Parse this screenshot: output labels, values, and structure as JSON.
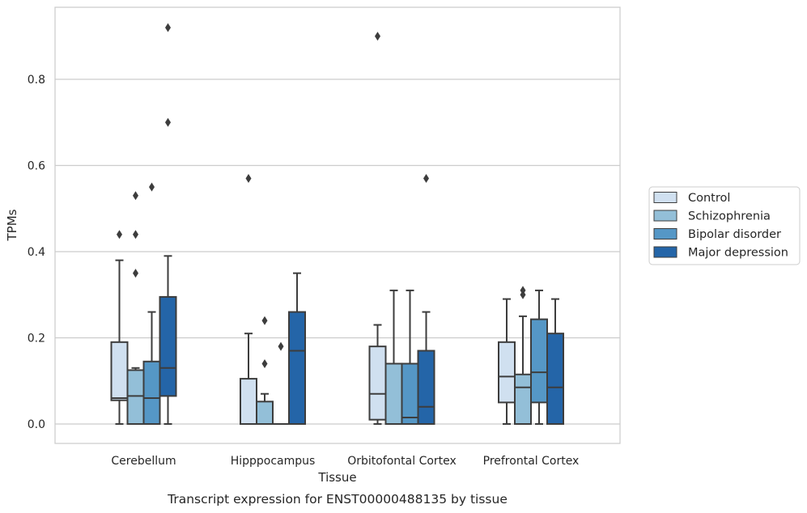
{
  "chart_data": {
    "type": "box",
    "xlabel": "Tissue",
    "ylabel": "TPMs",
    "caption": "Transcript expression for ENST00000488135 by tissue",
    "ylim": [
      -0.045,
      0.965
    ],
    "yticks": [
      0.0,
      0.2,
      0.4,
      0.6,
      0.8
    ],
    "ytick_labels": [
      "0.0",
      "0.2",
      "0.4",
      "0.6",
      "0.8"
    ],
    "grid": "horizontal",
    "legend_position": "right",
    "categories": [
      "Cerebellum",
      "Hipppocampus",
      "Orbitofontal Cortex",
      "Prefrontal Cortex"
    ],
    "series": [
      {
        "name": "Control",
        "color": "#d0e0f0",
        "boxes": [
          {
            "min": 0.0,
            "q1": 0.055,
            "median": 0.06,
            "q3": 0.19,
            "max": 0.38,
            "outliers": [
              0.44
            ]
          },
          {
            "min": 0.0,
            "q1": 0.0,
            "median": 0.0,
            "q3": 0.105,
            "max": 0.21,
            "outliers": [
              0.57
            ]
          },
          {
            "min": 0.0,
            "q1": 0.01,
            "median": 0.07,
            "q3": 0.18,
            "max": 0.23,
            "outliers": [
              0.9
            ]
          },
          {
            "min": 0.0,
            "q1": 0.05,
            "median": 0.11,
            "q3": 0.19,
            "max": 0.29,
            "outliers": []
          }
        ]
      },
      {
        "name": "Schizophrenia",
        "color": "#93bfd8",
        "boxes": [
          {
            "min": 0.0,
            "q1": 0.0,
            "median": 0.065,
            "q3": 0.125,
            "max": 0.13,
            "outliers": [
              0.35,
              0.44,
              0.53
            ]
          },
          {
            "min": 0.0,
            "q1": 0.0,
            "median": 0.0,
            "q3": 0.052,
            "max": 0.07,
            "outliers": [
              0.14,
              0.24
            ]
          },
          {
            "min": 0.0,
            "q1": 0.0,
            "median": 0.0,
            "q3": 0.14,
            "max": 0.31,
            "outliers": []
          },
          {
            "min": 0.0,
            "q1": 0.0,
            "median": 0.085,
            "q3": 0.115,
            "max": 0.25,
            "outliers": [
              0.3,
              0.31
            ]
          }
        ]
      },
      {
        "name": "Bipolar disorder",
        "color": "#5597c6",
        "boxes": [
          {
            "min": 0.0,
            "q1": 0.0,
            "median": 0.06,
            "q3": 0.145,
            "max": 0.26,
            "outliers": [
              0.55
            ]
          },
          {
            "min": 0.0,
            "q1": 0.0,
            "median": 0.0,
            "q3": 0.0,
            "max": 0.0,
            "outliers": [
              0.18
            ]
          },
          {
            "min": 0.0,
            "q1": 0.0,
            "median": 0.015,
            "q3": 0.14,
            "max": 0.31,
            "outliers": []
          },
          {
            "min": 0.0,
            "q1": 0.05,
            "median": 0.12,
            "q3": 0.243,
            "max": 0.31,
            "outliers": []
          }
        ]
      },
      {
        "name": "Major depression",
        "color": "#2465a8",
        "boxes": [
          {
            "min": 0.0,
            "q1": 0.065,
            "median": 0.13,
            "q3": 0.295,
            "max": 0.39,
            "outliers": [
              0.7,
              0.92
            ]
          },
          {
            "min": 0.0,
            "q1": 0.0,
            "median": 0.17,
            "q3": 0.26,
            "max": 0.35,
            "outliers": []
          },
          {
            "min": 0.0,
            "q1": 0.0,
            "median": 0.04,
            "q3": 0.17,
            "max": 0.26,
            "outliers": [
              0.57
            ]
          },
          {
            "min": 0.0,
            "q1": 0.0,
            "median": 0.085,
            "q3": 0.21,
            "max": 0.29,
            "outliers": []
          }
        ]
      }
    ]
  }
}
